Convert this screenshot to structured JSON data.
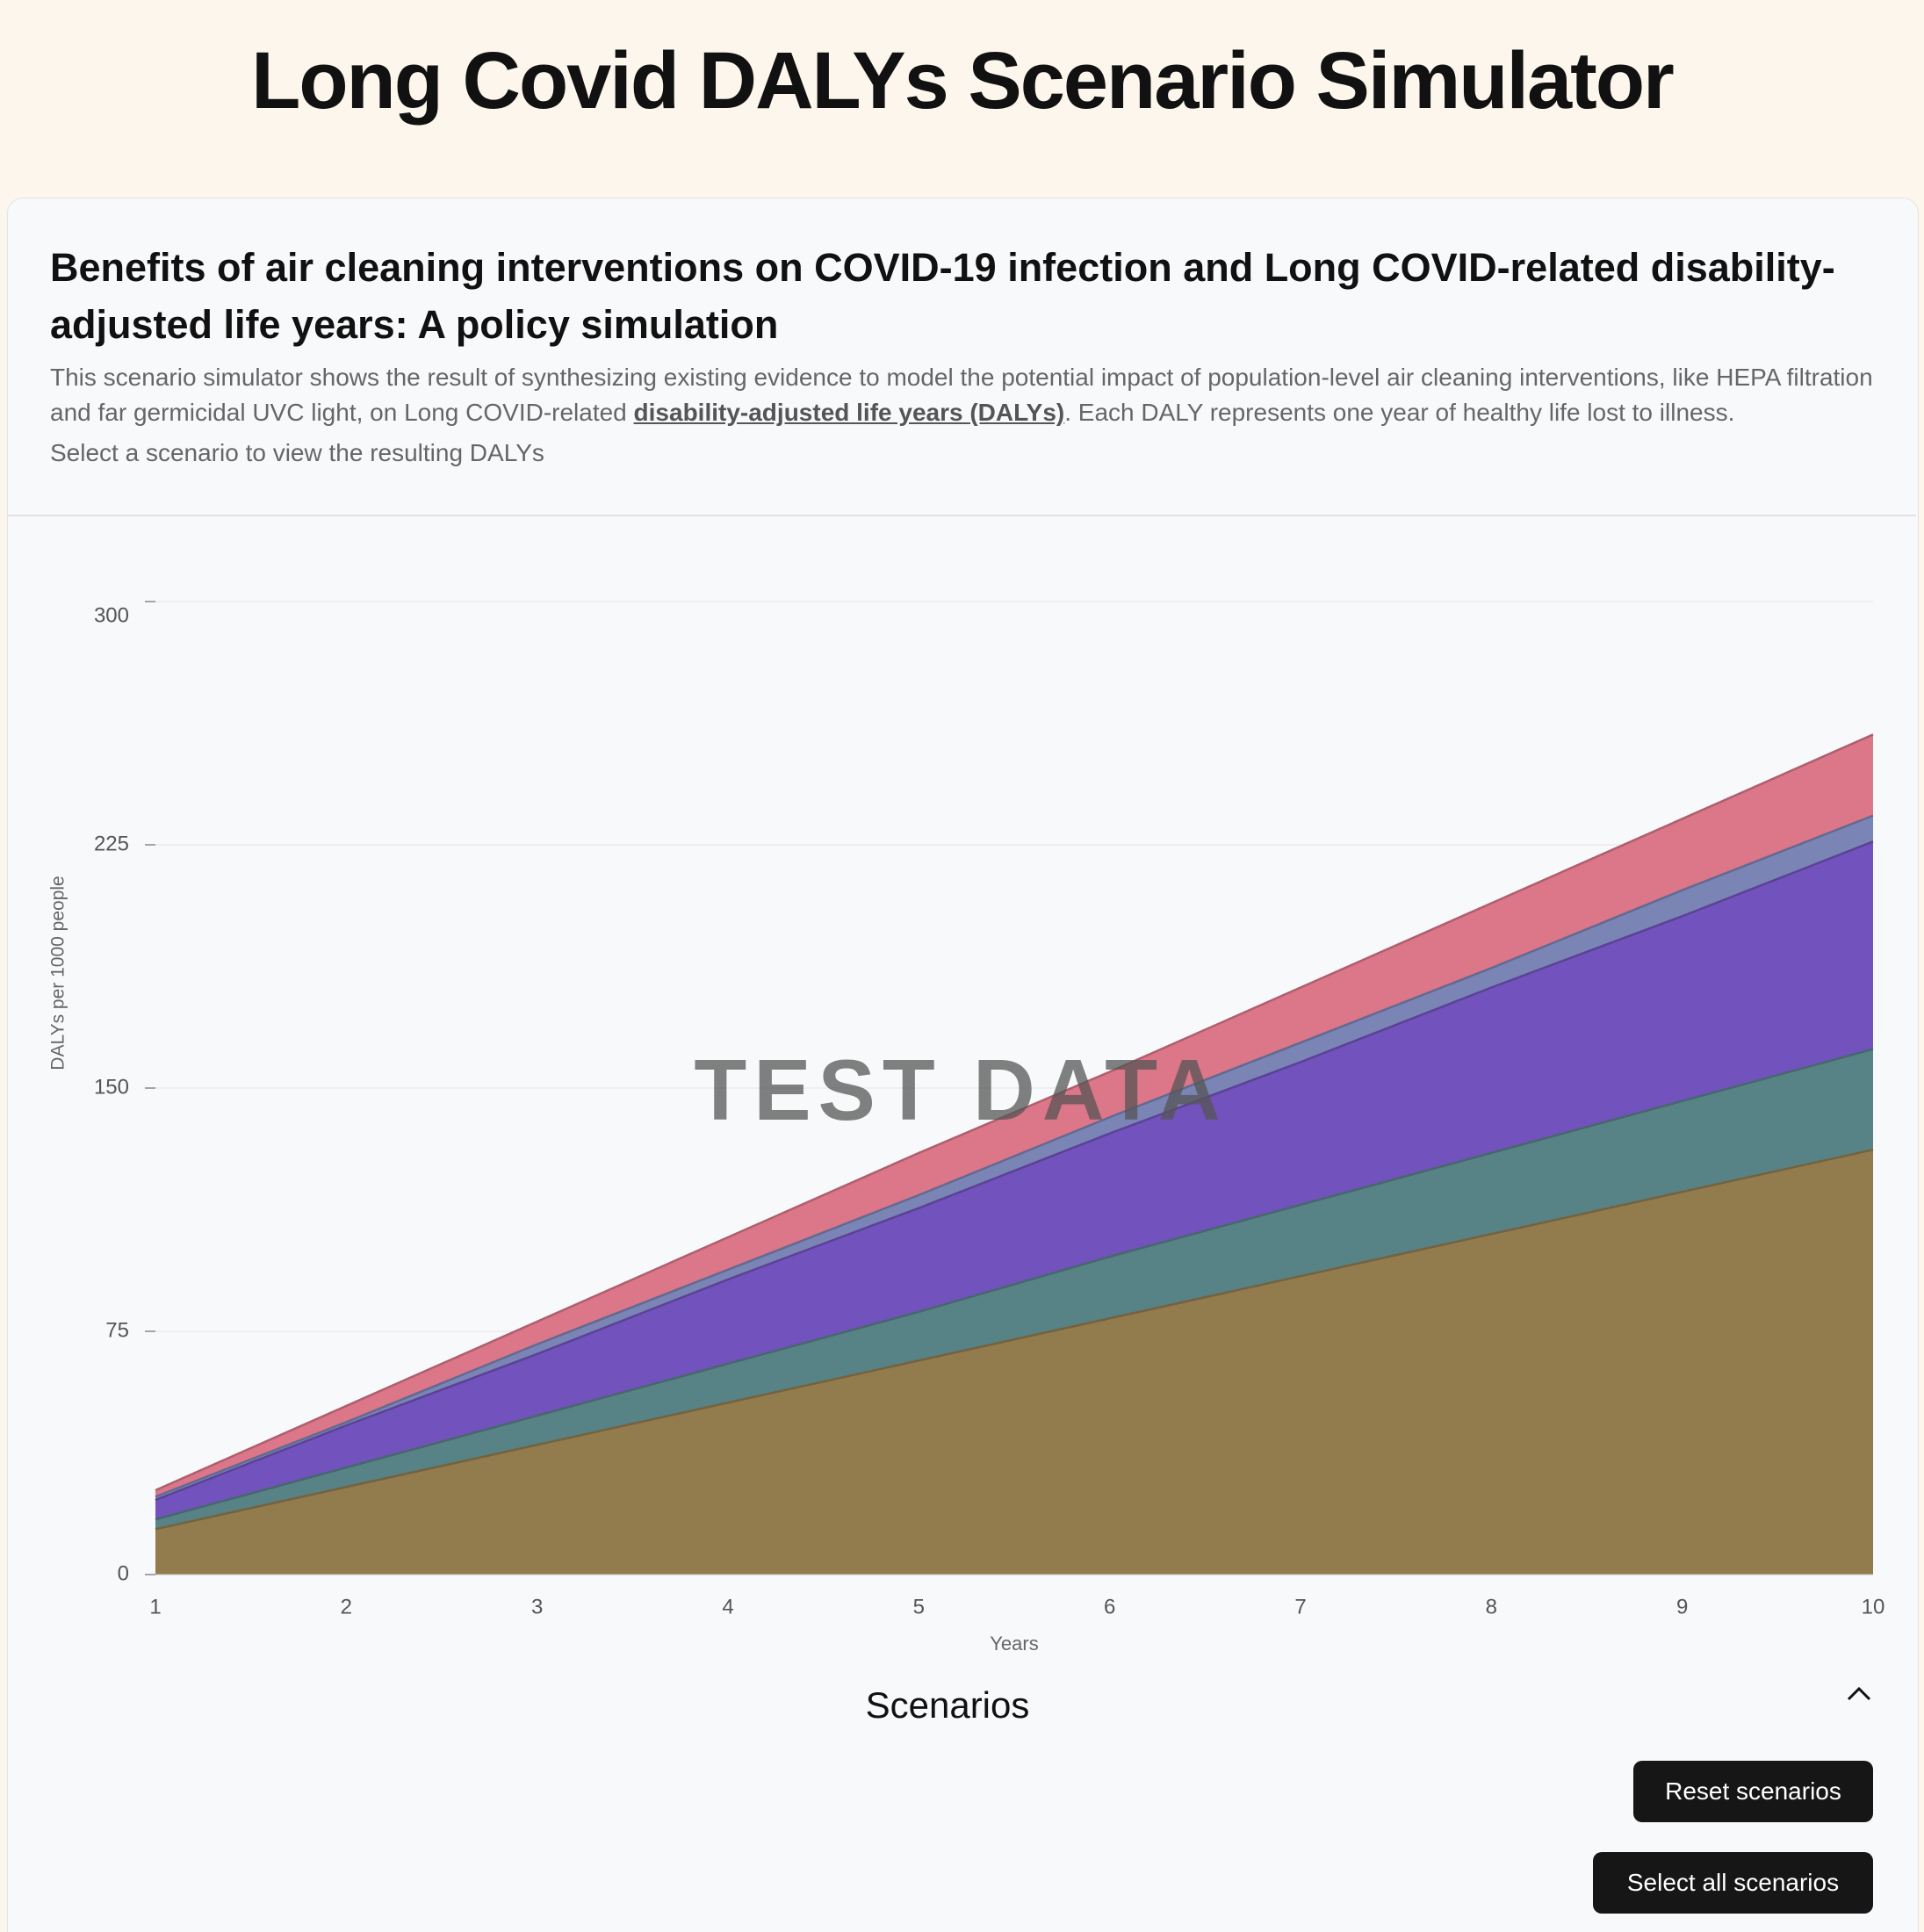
{
  "header": {
    "title": "Long Covid DALYs Scenario Simulator"
  },
  "card": {
    "heading": "Benefits of air cleaning interventions on COVID-19 infection and Long COVID-related disability-adjusted life years: A policy simulation",
    "description_before": "This scenario simulator shows the result of synthesizing existing evidence to model the potential impact of population-level air cleaning interventions, like HEPA filtration and far germicidal UVC light, on Long COVID-related",
    "description_link": "disability-adjusted life years (DALYs)",
    "description_after": ". Each DALY represents one year of healthy life lost to illness.",
    "instruction": "Select a scenario to view the resulting DALYs"
  },
  "chart_data": {
    "type": "area",
    "watermark": "TEST DATA",
    "x_label": "Years",
    "y_label": "DALYs per 1000 people",
    "x": [
      1,
      2,
      3,
      4,
      5,
      6,
      7,
      8,
      9,
      10
    ],
    "xlim": [
      1,
      10
    ],
    "xticks": [
      1,
      2,
      3,
      4,
      5,
      6,
      7,
      8,
      9,
      10
    ],
    "ylim": [
      0,
      300
    ],
    "yticks": [
      0,
      75,
      150,
      225,
      300
    ],
    "grid": true,
    "series": [
      {
        "color": "#dc7689",
        "values": [
          26,
          52,
          78,
          104,
          130,
          155,
          181,
          207,
          233,
          259
        ]
      },
      {
        "color": "#7a85b5",
        "values": [
          24,
          47,
          71,
          94,
          117,
          141,
          164,
          187,
          211,
          234
        ]
      },
      {
        "color": "#7252bc",
        "values": [
          23,
          46,
          68,
          91,
          113,
          136,
          158,
          181,
          203,
          226
        ]
      },
      {
        "color": "#578286",
        "values": [
          17,
          33,
          49,
          65,
          81,
          98,
          114,
          130,
          146,
          162
        ]
      },
      {
        "color": "#927b4c",
        "values": [
          14,
          27,
          40,
          53,
          66,
          79,
          92,
          105,
          118,
          131
        ]
      }
    ]
  },
  "scenarios": {
    "title": "Scenarios",
    "reset_button": "Reset scenarios",
    "select_all_button": "Select all scenarios"
  }
}
